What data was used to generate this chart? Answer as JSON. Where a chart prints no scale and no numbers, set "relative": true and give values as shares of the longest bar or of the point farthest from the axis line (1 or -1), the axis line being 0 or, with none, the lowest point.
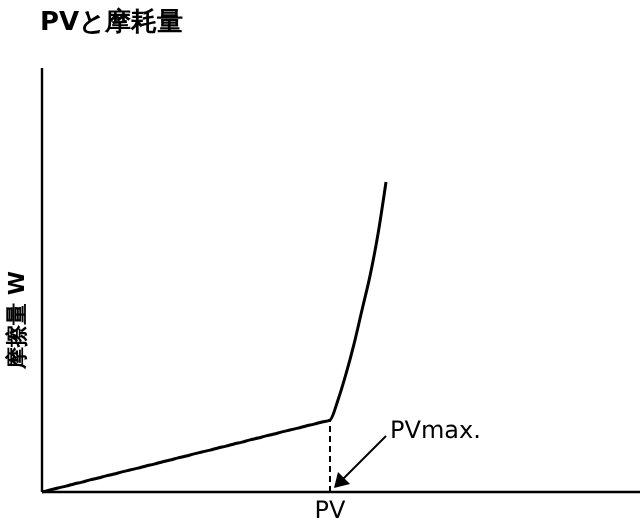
{
  "chart_data": {
    "type": "line",
    "title": "PVと摩耗量",
    "ylabel": "摩擦量 W",
    "xlabel": "PV",
    "relative": true,
    "categories": [
      null,
      null,
      null,
      null,
      null,
      null,
      null,
      null,
      null,
      null,
      null,
      null,
      null,
      null,
      null,
      null,
      null,
      null,
      null,
      null,
      null,
      null,
      null,
      null,
      null,
      null,
      null,
      null,
      null,
      null,
      null,
      null,
      null,
      null,
      null,
      null,
      null,
      null,
      null,
      null,
      null,
      null,
      null,
      null,
      null,
      null,
      null,
      null,
      null,
      null,
      null,
      null,
      null,
      null,
      null,
      null,
      null,
      null,
      null,
      null,
      null,
      null,
      null,
      null,
      null,
      null,
      null,
      null,
      null,
      null,
      null,
      null,
      null,
      null,
      null,
      null
    ],
    "series": [
      {
        "color": "#000000",
        "values": [
          0,
          0.0065,
          0.013,
          0.019,
          0.026,
          0.032,
          0.039,
          0.045,
          0.052,
          0.058,
          0.065,
          0.071,
          0.077,
          0.084,
          0.09,
          0.097,
          0.103,
          0.11,
          0.116,
          0.123,
          0.129,
          0.135,
          0.142,
          0.148,
          0.155,
          0.161,
          0.168,
          0.174,
          0.181,
          0.187,
          0.194,
          0.2,
          0.206,
          0.213,
          0.219,
          0.226,
          0.232,
          0.297,
          0.381,
          0.477,
          0.587,
          0.697,
          0.832,
          1,
          null,
          null,
          null,
          null,
          null,
          null,
          null,
          null,
          null,
          null,
          null,
          null,
          null,
          null,
          null,
          null,
          null,
          null,
          null,
          null,
          null,
          null,
          null,
          null,
          null,
          null,
          null,
          null,
          null,
          null,
          null,
          null
        ]
      }
    ],
    "annotations": [
      "PVmax."
    ],
    "line_style": "solid"
  }
}
